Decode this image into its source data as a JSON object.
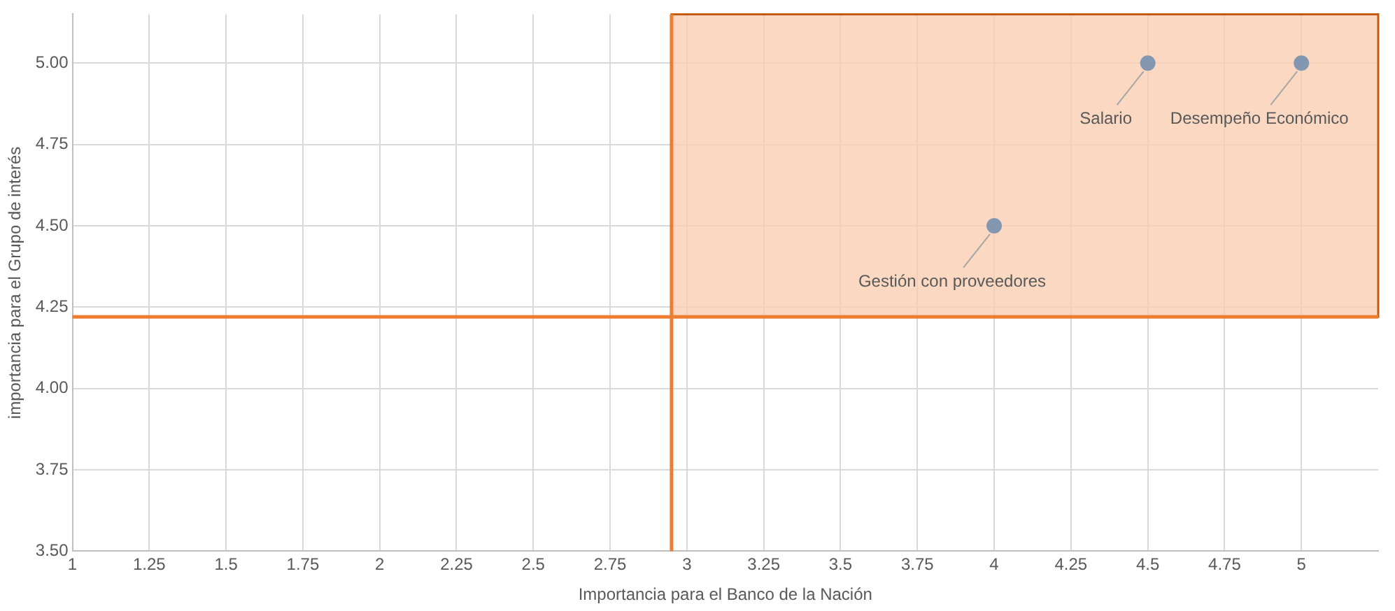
{
  "chart_data": {
    "type": "scatter",
    "xlabel": "Importancia para el Banco de la Nación",
    "ylabel": "importancia para el Grupo de interés",
    "x": [
      4,
      4.5,
      5
    ],
    "values": [
      4.5,
      5,
      5
    ],
    "color": "#8497b0",
    "marker": "circle",
    "xlim": [
      1,
      5.25
    ],
    "xticks": [
      1,
      1.25,
      1.5,
      1.75,
      2,
      2.25,
      2.5,
      2.75,
      3,
      3.25,
      3.5,
      3.75,
      4,
      4.25,
      4.5,
      4.75,
      5
    ],
    "ylim": [
      3.5,
      5.15
    ],
    "yticks": [
      {
        "value": 3.5,
        "label": "3.50"
      },
      {
        "value": 3.75,
        "label": "3.75"
      },
      {
        "value": 4,
        "label": "4.00"
      },
      {
        "value": 4.25,
        "label": "4.25"
      },
      {
        "value": 4.5,
        "label": "4.50"
      },
      {
        "value": 4.75,
        "label": "4.75"
      },
      {
        "value": 5,
        "label": "5.00"
      }
    ],
    "grid": true,
    "legend": false,
    "bands": [
      {
        "axis": "y",
        "from": 4.22,
        "to": 5.15,
        "color": "#f8cbad"
      }
    ],
    "ref_lines": [
      {
        "axis": "y",
        "value": 4.22,
        "color": "#ed7d31"
      },
      {
        "axis": "x",
        "value": 2.95,
        "color": "#ed7d31"
      }
    ],
    "annotations": [
      {
        "text": "Gestión con proveedores",
        "x": 4,
        "y": 4.5
      },
      {
        "text": "Salario",
        "x": 4.5,
        "y": 5
      },
      {
        "text": "Desempeño Económico",
        "x": 5,
        "y": 5
      }
    ]
  }
}
